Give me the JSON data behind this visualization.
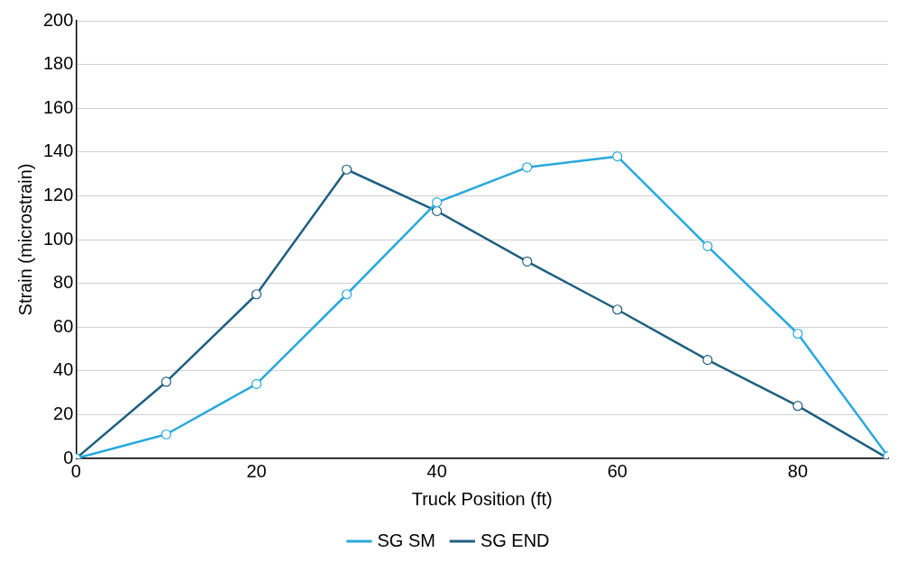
{
  "chart_data": {
    "type": "line",
    "xlabel": "Truck Position (ft)",
    "ylabel": "Strain (microstrain)",
    "x": [
      0,
      10,
      20,
      30,
      40,
      50,
      60,
      70,
      80,
      90
    ],
    "series": [
      {
        "name": "SG SM",
        "color": "#29a8dc",
        "values": [
          0,
          11,
          34,
          75,
          117,
          133,
          138,
          97,
          57,
          1
        ]
      },
      {
        "name": "SG END",
        "color": "#1f5f80",
        "values": [
          0,
          35,
          75,
          132,
          113,
          90,
          68,
          45,
          24,
          0
        ]
      }
    ],
    "xlim": [
      0,
      90
    ],
    "xticks": [
      0,
      20,
      40,
      60,
      80
    ],
    "ylim": [
      0,
      200
    ],
    "yticks": [
      0,
      20,
      40,
      60,
      80,
      100,
      120,
      140,
      160,
      180,
      200
    ],
    "grid": "y",
    "legend": "bottom",
    "marker": "circle",
    "line_style": "solid"
  }
}
